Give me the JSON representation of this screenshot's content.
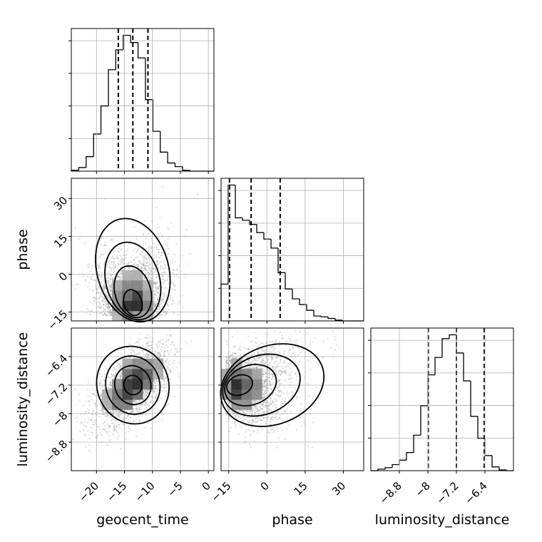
{
  "chart_data": {
    "type": "corner",
    "parameters": [
      "geocent_time",
      "phase",
      "luminosity_distance"
    ],
    "grid": true,
    "histograms": [
      {
        "parameter": "geocent_time",
        "xlim": [
          -24.5,
          1
        ],
        "xticks": [
          -20,
          -15,
          -10,
          -5,
          0
        ],
        "bin_edges": [
          -24.5,
          -23.17,
          -21.85,
          -20.52,
          -19.2,
          -17.87,
          -16.55,
          -15.22,
          -13.9,
          -12.57,
          -11.25,
          -9.92,
          -8.6,
          -7.27,
          -5.95,
          -4.62,
          -3.3,
          -1.97,
          -0.65,
          1
        ],
        "counts": [
          1,
          4,
          16,
          41,
          72,
          112,
          134,
          150,
          142,
          125,
          79,
          44,
          21,
          9,
          5,
          1,
          0,
          0,
          0
        ],
        "quantiles": [
          -16.1,
          -13.5,
          -10.8
        ]
      },
      {
        "parameter": "phase",
        "xlim": [
          -18,
          38
        ],
        "xticks": [
          -15,
          0,
          15,
          30
        ],
        "bin_edges": [
          -18,
          -15.2,
          -12.4,
          -9.6,
          -6.8,
          -4,
          -1.2,
          1.6,
          4.4,
          7.2,
          10,
          12.8,
          15.6,
          18.4,
          21.2,
          24,
          26.8,
          29.6,
          32.4,
          35.2,
          38
        ],
        "counts": [
          45,
          166,
          126,
          123,
          118,
          108,
          100,
          89,
          59,
          39,
          27,
          20,
          13,
          6,
          5,
          3,
          1,
          0,
          0,
          0
        ],
        "quantiles": [
          -14.7,
          -6.2,
          5.2
        ]
      },
      {
        "parameter": "luminosity_distance",
        "xlim": [
          -9.6,
          -5.6
        ],
        "xticks": [
          -8.8,
          -8.0,
          -7.2,
          -6.4
        ],
        "bin_edges": [
          -9.6,
          -9.4,
          -9.2,
          -9.0,
          -8.8,
          -8.6,
          -8.4,
          -8.2,
          -8.0,
          -7.8,
          -7.6,
          -7.4,
          -7.2,
          -7.0,
          -6.8,
          -6.6,
          -6.4,
          -6.2,
          -6.0,
          -5.8,
          -5.6
        ],
        "counts": [
          0,
          2,
          4,
          8,
          14,
          24,
          47,
          86,
          127,
          150,
          175,
          180,
          156,
          119,
          72,
          43,
          20,
          5,
          1,
          0
        ],
        "quantiles": [
          -7.99,
          -7.2,
          -6.42
        ]
      }
    ],
    "panels": [
      {
        "x": "geocent_time",
        "y": "phase",
        "xlim": [
          -24.5,
          1
        ],
        "ylim": [
          -18.5,
          38
        ],
        "yticks": [
          -15,
          0,
          15,
          30
        ],
        "center": [
          -13.5,
          -6.5
        ],
        "spread": [
          3.2,
          9.5
        ],
        "corr": 0.45,
        "skew_y": true
      },
      {
        "x": "geocent_time",
        "y": "luminosity_distance",
        "xlim": [
          -24.5,
          1
        ],
        "ylim": [
          -9.6,
          -5.6
        ],
        "yticks": [
          -8.8,
          -8.0,
          -7.2,
          -6.4
        ],
        "center": [
          -13.5,
          -7.2
        ],
        "spread": [
          3.2,
          0.55
        ],
        "corr": 0.6,
        "skew_y": false
      },
      {
        "x": "phase",
        "y": "luminosity_distance",
        "xlim": [
          -18,
          38
        ],
        "ylim": [
          -9.6,
          -5.6
        ],
        "center": [
          -6,
          -7.2
        ],
        "spread": [
          9.5,
          0.55
        ],
        "corr": 0.6,
        "skew_x": true
      }
    ]
  }
}
